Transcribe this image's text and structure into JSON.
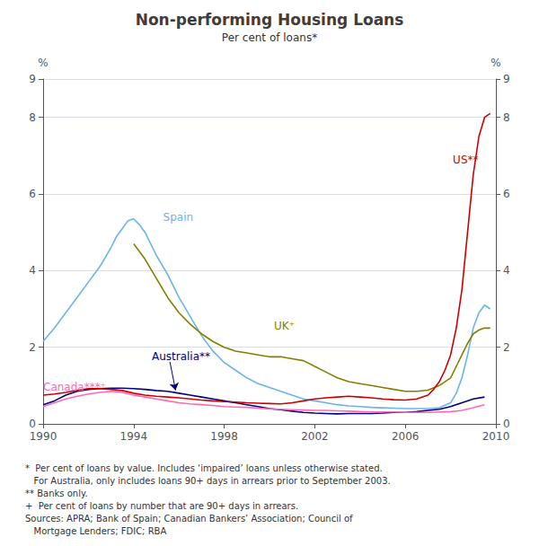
{
  "chart_data": {
    "type": "line",
    "title": "Non-performing Housing Loans",
    "subtitle": "Per cent of loans*",
    "y_label": "%",
    "y2_label": "%",
    "footnotes": "*  Per cent of loans by value. Includes ‘impaired’ loans unless otherwise stated.\n   For Australia, only includes loans 90+ days in arrears prior to September 2003.\n** Banks only.\n+  Per cent of loans by number that are 90+ days in arrears.\nSources: APRA; Bank of Spain; Canadian Bankers’ Association; Council of\n   Mortgage Lenders; FDIC; RBA",
    "xlim": [
      1990,
      2010
    ],
    "xticks": [
      1990,
      1994,
      1998,
      2002,
      2006,
      2010
    ],
    "ylim": [
      0,
      9
    ],
    "yticks": [
      0,
      2,
      4,
      6,
      8
    ],
    "y2lim": [
      0,
      9
    ],
    "y2ticks": [
      0,
      2,
      4,
      6,
      8
    ],
    "grid": true,
    "series": [
      {
        "name": "Spain",
        "color": "#6ab4e8",
        "x": [
          1990,
          1990.5,
          1991,
          1991.5,
          1992,
          1992.5,
          1993,
          1993.25,
          1993.5,
          1993.75,
          1994,
          1994.25,
          1994.5,
          1994.75,
          1995,
          1995.5,
          1996,
          1996.5,
          1997,
          1997.5,
          1998,
          1998.5,
          1999,
          1999.5,
          2000,
          2000.5,
          2001,
          2001.5,
          2002,
          2002.5,
          2003,
          2003.5,
          2004,
          2004.5,
          2005,
          2005.5,
          2006,
          2006.5,
          2007,
          2007.5,
          2008,
          2008.25,
          2008.5,
          2008.75,
          2009,
          2009.25,
          2009.5,
          2009.75
        ],
        "values": [
          2.15,
          2.5,
          2.9,
          3.3,
          3.7,
          4.1,
          4.6,
          4.9,
          5.1,
          5.3,
          5.35,
          5.2,
          5.0,
          4.7,
          4.4,
          3.9,
          3.3,
          2.8,
          2.3,
          1.9,
          1.6,
          1.4,
          1.2,
          1.05,
          0.95,
          0.85,
          0.75,
          0.65,
          0.6,
          0.55,
          0.5,
          0.47,
          0.45,
          0.43,
          0.42,
          0.41,
          0.4,
          0.4,
          0.4,
          0.42,
          0.55,
          0.8,
          1.2,
          1.8,
          2.5,
          2.9,
          3.1,
          3.0
        ]
      },
      {
        "name": "UK⁺",
        "color": "#808000",
        "x": [
          1994,
          1994.5,
          1995,
          1995.5,
          1996,
          1996.5,
          1997,
          1997.5,
          1998,
          1998.5,
          1999,
          1999.5,
          2000,
          2000.5,
          2001,
          2001.5,
          2002,
          2002.5,
          2003,
          2003.5,
          2004,
          2004.5,
          2005,
          2005.5,
          2006,
          2006.5,
          2007,
          2007.5,
          2008,
          2008.25,
          2008.5,
          2008.75,
          2009,
          2009.25,
          2009.5,
          2009.75
        ],
        "values": [
          4.7,
          4.3,
          3.8,
          3.3,
          2.9,
          2.6,
          2.35,
          2.15,
          2.0,
          1.9,
          1.85,
          1.8,
          1.75,
          1.75,
          1.7,
          1.65,
          1.5,
          1.35,
          1.2,
          1.1,
          1.05,
          1.0,
          0.95,
          0.9,
          0.85,
          0.85,
          0.88,
          1.0,
          1.2,
          1.5,
          1.8,
          2.1,
          2.35,
          2.45,
          2.5,
          2.5
        ]
      },
      {
        "name": "Australia**",
        "color": "#000080",
        "x": [
          1990,
          1990.5,
          1991,
          1991.5,
          1992,
          1992.5,
          1993,
          1993.5,
          1994,
          1994.5,
          1995,
          1995.5,
          1996,
          1996.5,
          1997,
          1997.5,
          1998,
          1998.5,
          1999,
          1999.5,
          2000,
          2000.5,
          2001,
          2001.5,
          2002,
          2002.5,
          2003,
          2003.5,
          2004,
          2004.5,
          2005,
          2005.5,
          2006,
          2006.5,
          2007,
          2007.5,
          2008,
          2008.5,
          2009,
          2009.5
        ],
        "values": [
          0.5,
          0.6,
          0.75,
          0.85,
          0.9,
          0.92,
          0.93,
          0.93,
          0.92,
          0.9,
          0.87,
          0.85,
          0.8,
          0.75,
          0.7,
          0.65,
          0.6,
          0.55,
          0.5,
          0.45,
          0.4,
          0.37,
          0.33,
          0.3,
          0.28,
          0.27,
          0.26,
          0.27,
          0.27,
          0.27,
          0.28,
          0.3,
          0.3,
          0.32,
          0.35,
          0.38,
          0.45,
          0.55,
          0.65,
          0.7
        ]
      },
      {
        "name": "Canada***⁺",
        "color": "#ff69b4",
        "x": [
          1990,
          1990.5,
          1991,
          1991.5,
          1992,
          1992.5,
          1993,
          1993.5,
          1994,
          1994.5,
          1995,
          1995.5,
          1996,
          1996.5,
          1997,
          1997.5,
          1998,
          1998.5,
          1999,
          1999.5,
          2000,
          2000.5,
          2001,
          2001.5,
          2002,
          2002.5,
          2003,
          2003.5,
          2004,
          2004.5,
          2005,
          2005.5,
          2006,
          2006.5,
          2007,
          2007.5,
          2008,
          2008.5,
          2009,
          2009.5
        ],
        "values": [
          0.45,
          0.55,
          0.65,
          0.72,
          0.78,
          0.82,
          0.85,
          0.82,
          0.75,
          0.7,
          0.65,
          0.6,
          0.55,
          0.52,
          0.5,
          0.48,
          0.45,
          0.44,
          0.43,
          0.41,
          0.39,
          0.38,
          0.37,
          0.36,
          0.35,
          0.35,
          0.34,
          0.33,
          0.32,
          0.31,
          0.31,
          0.31,
          0.3,
          0.3,
          0.3,
          0.31,
          0.32,
          0.35,
          0.42,
          0.5
        ]
      },
      {
        "name": "US**",
        "color": "#cc0000",
        "x": [
          1990,
          1990.5,
          1991,
          1991.5,
          1992,
          1992.5,
          1993,
          1993.5,
          1994,
          1994.5,
          1995,
          1995.5,
          1996,
          1996.5,
          1997,
          1997.5,
          1998,
          1998.5,
          1999,
          1999.5,
          2000,
          2000.5,
          2001,
          2001.5,
          2002,
          2002.5,
          2003,
          2003.5,
          2004,
          2004.5,
          2005,
          2005.5,
          2006,
          2006.5,
          2007,
          2007.25,
          2007.5,
          2007.75,
          2008,
          2008.25,
          2008.5,
          2008.75,
          2009,
          2009.25,
          2009.5,
          2009.75
        ],
        "values": [
          0.75,
          0.78,
          0.82,
          0.88,
          0.92,
          0.92,
          0.9,
          0.87,
          0.8,
          0.75,
          0.72,
          0.7,
          0.68,
          0.65,
          0.62,
          0.6,
          0.58,
          0.57,
          0.55,
          0.54,
          0.53,
          0.52,
          0.55,
          0.6,
          0.65,
          0.68,
          0.7,
          0.72,
          0.7,
          0.68,
          0.65,
          0.63,
          0.62,
          0.65,
          0.75,
          0.9,
          1.1,
          1.4,
          1.8,
          2.5,
          3.5,
          5.0,
          6.5,
          7.5,
          8.0,
          8.1
        ]
      }
    ],
    "annotations": [
      {
        "text": "Spain",
        "x": 1995.3,
        "y": 5.4,
        "color": "#6ab4e8"
      },
      {
        "text": "UK⁺",
        "x": 2000.2,
        "y": 2.55,
        "color": "#808000"
      },
      {
        "text": "Australia**",
        "x": 1994.8,
        "y": 1.75,
        "color": "#000080",
        "arrow_from": [
          1995.6,
          1.62
        ],
        "arrow_to": [
          1995.85,
          0.88
        ]
      },
      {
        "text": "Canada***⁺",
        "x": 1990.0,
        "y": 0.95,
        "color": "#ff69b4"
      },
      {
        "text": "US**",
        "x": 2008.1,
        "y": 6.9,
        "color": "#cc0000"
      }
    ]
  }
}
